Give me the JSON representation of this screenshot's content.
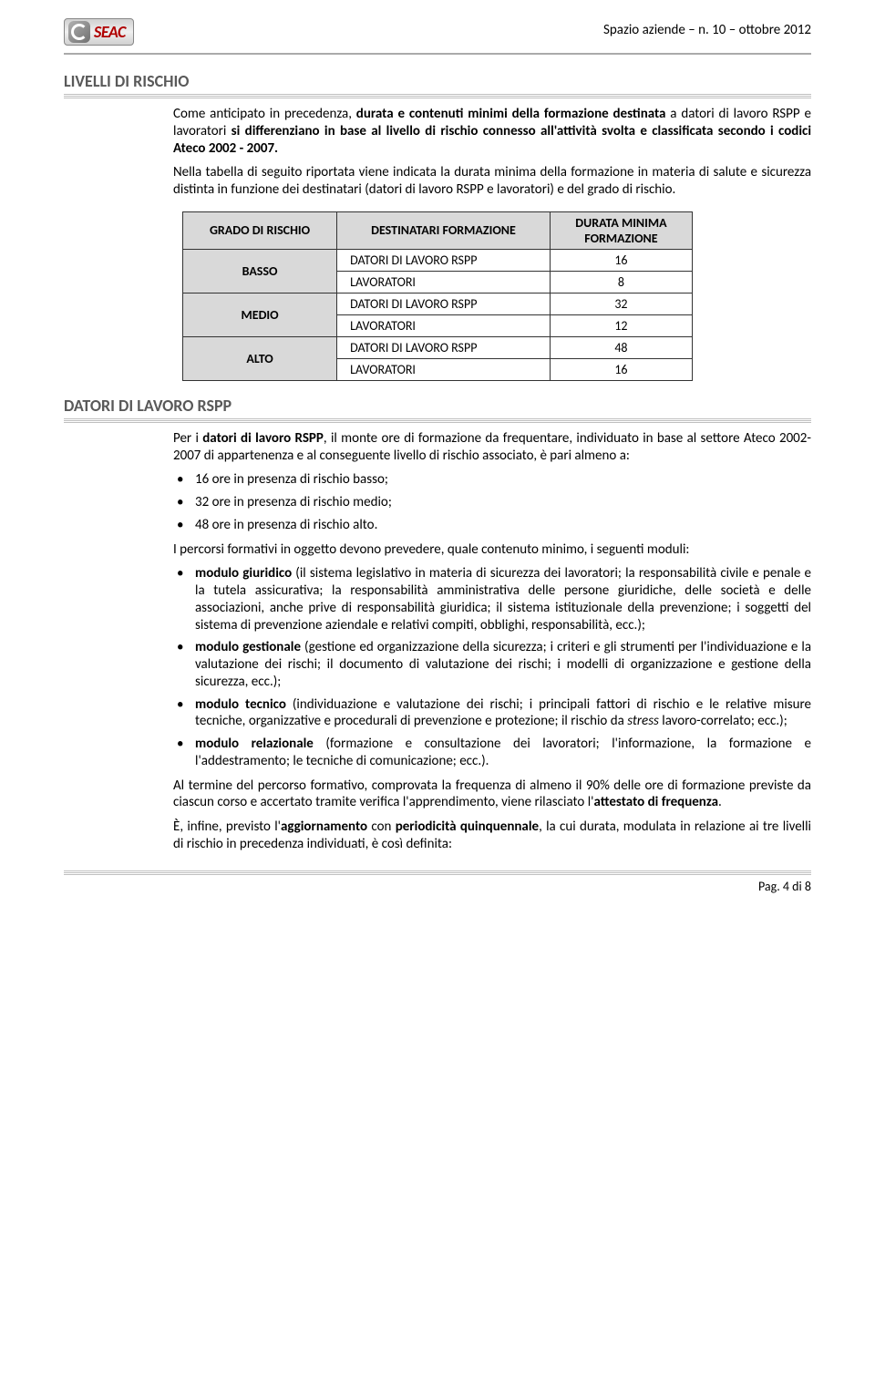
{
  "header": {
    "logo_brand": "SEAC",
    "right_text": "Spazio aziende – n. 10 – ottobre 2012"
  },
  "section1": {
    "heading": "LIVELLI DI RISCHIO",
    "para1_pre": "Come anticipato in precedenza, ",
    "para1_b1": "durata e contenuti minimi della formazione destinata",
    "para1_mid1": " a datori di lavoro RSPP e lavoratori ",
    "para1_b2": "si differenziano in base al livello di rischio connesso all'attività svolta e classificata secondo i codici Ateco 2002 - 2007.",
    "para2": "Nella tabella di seguito riportata viene indicata la durata minima della formazione in materia di salute e sicurezza distinta in funzione dei destinatari (datori di lavoro RSPP e lavoratori) e del grado di rischio."
  },
  "risk_table": {
    "h1": "GRADO DI RISCHIO",
    "h2": "DESTINATARI FORMAZIONE",
    "h3_l1": "DURATA MINIMA",
    "h3_l2": "FORMAZIONE",
    "rows": [
      {
        "grade": "BASSO",
        "dest1": "DATORI DI LAVORO RSPP",
        "dur1": "16",
        "dest2": "LAVORATORI",
        "dur2": "8"
      },
      {
        "grade": "MEDIO",
        "dest1": "DATORI DI LAVORO RSPP",
        "dur1": "32",
        "dest2": "LAVORATORI",
        "dur2": "12"
      },
      {
        "grade": "ALTO",
        "dest1": "DATORI DI LAVORO RSPP",
        "dur1": "48",
        "dest2": "LAVORATORI",
        "dur2": "16"
      }
    ]
  },
  "section2": {
    "heading": "DATORI DI LAVORO RSPP",
    "intro_pre": "Per i ",
    "intro_b": "datori di lavoro RSPP",
    "intro_post": ", il monte ore di formazione da frequentare, individuato in base al settore Ateco 2002-2007 di appartenenza e al conseguente livello di rischio associato, è pari almeno a:",
    "hours": [
      "16 ore in presenza di rischio basso;",
      "32 ore in presenza di rischio medio;",
      "48 ore in presenza di rischio alto."
    ],
    "modules_intro": "I percorsi formativi in oggetto devono prevedere, quale contenuto minimo, i seguenti moduli:",
    "modules": [
      {
        "b": "modulo giuridico",
        "t": " (il sistema legislativo in materia di sicurezza dei lavoratori; la responsabilità civile e penale e la tutela assicurativa; la responsabilità amministrativa delle persone giuridiche, delle società e delle associazioni, anche prive di responsabilità giuridica; il sistema istituzionale della prevenzione; i soggetti del sistema di prevenzione aziendale e relativi compiti, obblighi, responsabilità, ecc.);"
      },
      {
        "b": "modulo gestionale",
        "t": " (gestione ed organizzazione della sicurezza; i criteri e gli strumenti per l'individuazione e la valutazione dei rischi; il documento di valutazione dei rischi; i modelli di organizzazione e gestione della sicurezza, ecc.);"
      },
      {
        "b": "modulo tecnico",
        "t_pre": " (individuazione e valutazione dei rischi; i principali fattori di rischio e le relative misure tecniche, organizzative e procedurali di prevenzione e protezione; il rischio da ",
        "i": "stress",
        "t_post": " lavoro-correlato; ecc.);"
      },
      {
        "b": "modulo relazionale",
        "t": " (formazione e consultazione dei lavoratori; l'informazione, la formazione e l'addestramento; le tecniche di comunicazione; ecc.)."
      }
    ],
    "closing1_pre": "Al termine del percorso formativo, comprovata la frequenza di almeno il 90% delle ore di formazione previste da ciascun corso e accertato tramite verifica l'apprendimento, viene rilasciato l'",
    "closing1_b": "attestato di frequenza",
    "closing1_post": ".",
    "closing2_pre": "È, infine, previsto l'",
    "closing2_b1": "aggiornamento",
    "closing2_mid": " con ",
    "closing2_b2": "periodicità quinquennale",
    "closing2_post": ", la cui durata, modulata in relazione ai tre livelli di rischio in precedenza individuati, è così definita:"
  },
  "footer": {
    "page": "Pag. 4 di 8"
  }
}
